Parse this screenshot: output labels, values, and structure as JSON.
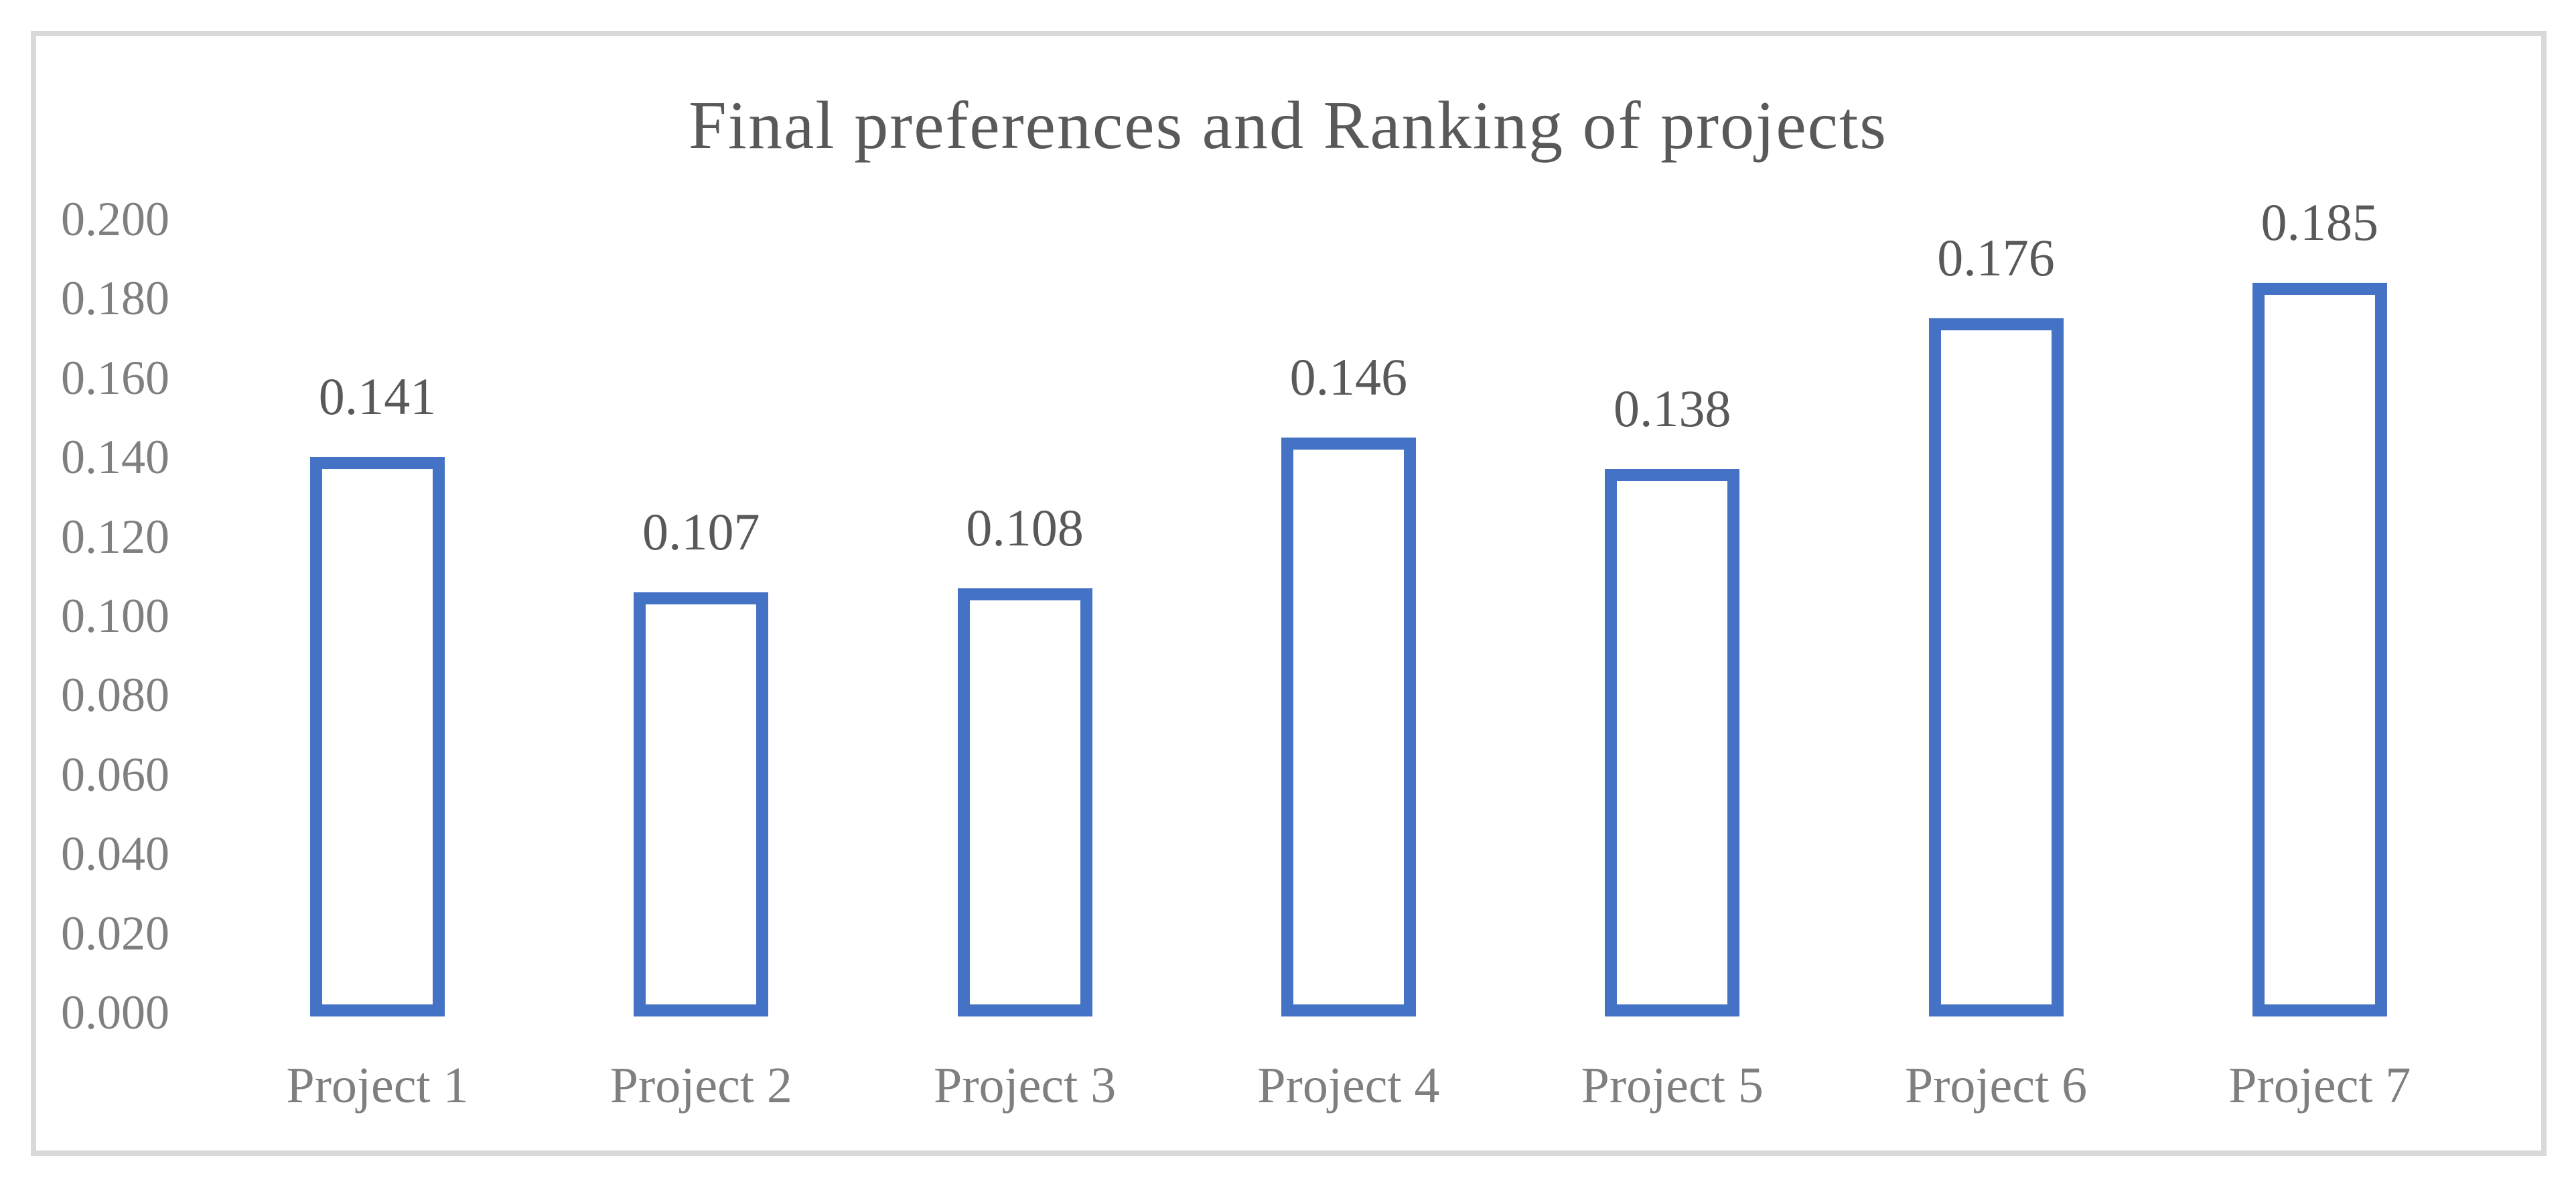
{
  "chart_data": {
    "type": "bar",
    "title": "Final preferences and Ranking of projects",
    "categories": [
      "Project 1",
      "Project 2",
      "Project 3",
      "Project 4",
      "Project 5",
      "Project 6",
      "Project 7"
    ],
    "values": [
      0.141,
      0.107,
      0.108,
      0.146,
      0.138,
      0.176,
      0.185
    ],
    "value_labels": [
      "0.141",
      "0.107",
      "0.108",
      "0.146",
      "0.138",
      "0.176",
      "0.185"
    ],
    "y_ticks": [
      "0.200",
      "0.180",
      "0.160",
      "0.140",
      "0.120",
      "0.100",
      "0.080",
      "0.060",
      "0.040",
      "0.020",
      "0.000"
    ],
    "ylim": [
      0.0,
      0.2
    ],
    "y_step": 0.02,
    "xlabel": "",
    "ylabel": "",
    "grid": "off",
    "legend": "none",
    "colors": {
      "bar_fill": "#FFFFFF",
      "bar_border": "#4472C4",
      "title_text": "#595959",
      "value_label_text": "#595959",
      "axis_tick_text": "#7f7f7f",
      "category_text": "#7f7f7f",
      "chart_frame_border": "#D9D9D9",
      "background": "#FFFFFF"
    }
  }
}
